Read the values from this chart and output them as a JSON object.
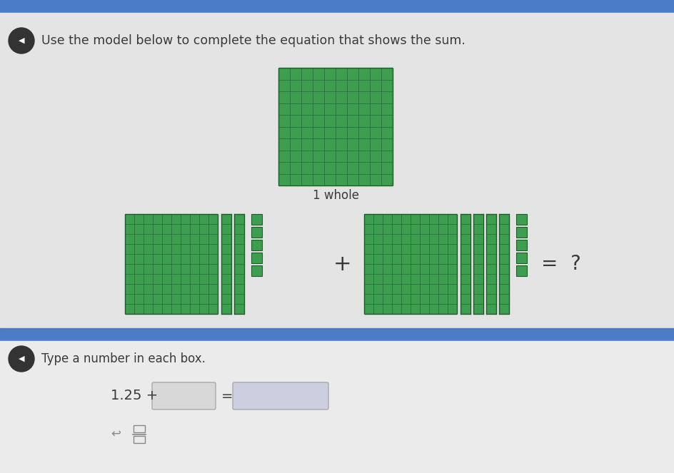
{
  "bg_blue": "#4a7cc7",
  "bg_gray_top": "#e4e4e4",
  "bg_gray_bottom": "#ebebeb",
  "blue_divider": "#4a7cc7",
  "green_fill": "#3d9e50",
  "green_line": "#1e5c2a",
  "green_dark_fill": "#2e7a3c",
  "title_text": "Use the model below to complete the equation that shows the sum.",
  "whole_label": "1 whole",
  "type_label": "Type a number in each box.",
  "equation_prefix": "1.25 +",
  "text_color": "#3a3a3a",
  "input_box1_color": "#d8d8d8",
  "input_box2_color": "#cccfe0",
  "speaker_dark": "#222222",
  "speaker_bg": "#333333"
}
